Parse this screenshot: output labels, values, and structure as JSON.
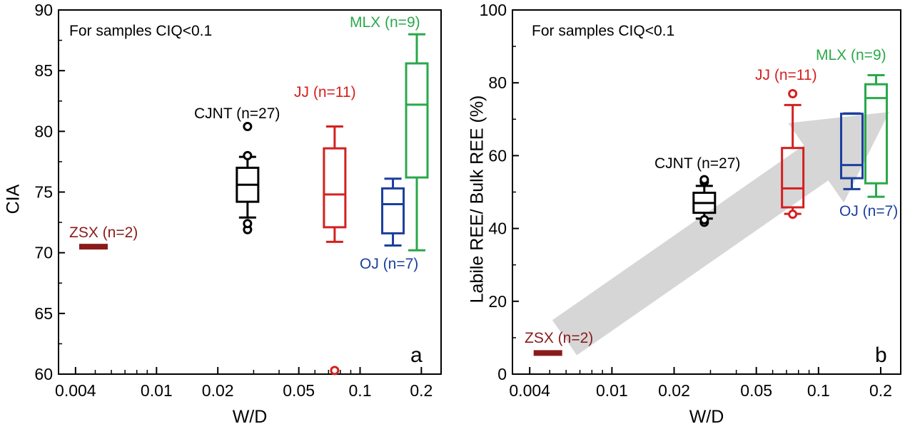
{
  "chart_data": [
    {
      "type": "box",
      "panel": "a",
      "note": "For samples CIQ<0.1",
      "xlabel": "W/D",
      "ylabel": "CIA",
      "x_scale": "log",
      "xlim": [
        0.0033,
        0.25
      ],
      "xticks": [
        0.004,
        0.01,
        0.02,
        0.05,
        0.1,
        0.2
      ],
      "xtick_labels": [
        "0.004",
        "0.01",
        "0.02",
        "0.05",
        "0.1",
        "0.2"
      ],
      "ylim": [
        60,
        90
      ],
      "yticks": [
        60,
        65,
        70,
        75,
        80,
        85,
        90
      ],
      "series": [
        {
          "name": "ZSX (n=2)",
          "color": "#8b1a1a",
          "x": 0.0049,
          "range_bar": [
            70.5,
            70.5
          ]
        },
        {
          "name": "CJNT (n=27)",
          "color": "#000000",
          "x": 0.028,
          "whisker_low": 72.9,
          "q1": 74.2,
          "median": 75.6,
          "q3": 77.0,
          "whisker_high": 77.9,
          "outliers": [
            71.9,
            72.4,
            78.0,
            80.4
          ]
        },
        {
          "name": "JJ (n=11)",
          "color": "#d42020",
          "x": 0.075,
          "whisker_low": 70.9,
          "q1": 72.1,
          "median": 74.8,
          "q3": 78.6,
          "whisker_high": 80.4,
          "outliers": [
            60.3
          ]
        },
        {
          "name": "OJ (n=7)",
          "color": "#1c3f9e",
          "x": 0.145,
          "whisker_low": 70.6,
          "q1": 71.6,
          "median": 74.0,
          "q3": 75.3,
          "whisker_high": 76.1,
          "outliers": []
        },
        {
          "name": "MLX (n=9)",
          "color": "#2aa84a",
          "x": 0.19,
          "whisker_low": 70.2,
          "q1": 76.2,
          "median": 82.2,
          "q3": 85.6,
          "whisker_high": 88.0,
          "outliers": []
        }
      ],
      "annotation": "a"
    },
    {
      "type": "box",
      "panel": "b",
      "note": "For samples CIQ<0.1",
      "xlabel": "W/D",
      "ylabel": "Labile REE/ Bulk REE (%)",
      "x_scale": "log",
      "xlim": [
        0.0033,
        0.25
      ],
      "xticks": [
        0.004,
        0.01,
        0.02,
        0.05,
        0.1,
        0.2
      ],
      "xtick_labels": [
        "0.004",
        "0.01",
        "0.02",
        "0.05",
        "0.1",
        "0.2"
      ],
      "ylim": [
        0,
        100
      ],
      "yticks": [
        0,
        20,
        40,
        60,
        80,
        100
      ],
      "series": [
        {
          "name": "ZSX (n=2)",
          "color": "#8b1a1a",
          "x": 0.0049,
          "range_bar": [
            5.8,
            5.8
          ]
        },
        {
          "name": "CJNT (n=27)",
          "color": "#000000",
          "x": 0.028,
          "whisker_low": 42.7,
          "q1": 44.3,
          "median": 47.0,
          "q3": 49.8,
          "whisker_high": 51.7,
          "outliers": [
            41.7,
            42.4,
            52.8,
            53.4
          ]
        },
        {
          "name": "JJ (n=11)",
          "color": "#d42020",
          "x": 0.075,
          "whisker_low": 44.0,
          "q1": 45.8,
          "median": 51.0,
          "q3": 62.1,
          "whisker_high": 73.9,
          "outliers": [
            43.9,
            77.0
          ]
        },
        {
          "name": "OJ (n=7)",
          "color": "#1c3f9e",
          "x": 0.145,
          "whisker_low": 50.8,
          "q1": 53.8,
          "median": 57.4,
          "q3": 71.5,
          "whisker_high": 71.6,
          "outliers": []
        },
        {
          "name": "MLX (n=9)",
          "color": "#2aa84a",
          "x": 0.19,
          "whisker_low": 48.7,
          "q1": 52.4,
          "median": 75.8,
          "q3": 79.6,
          "whisker_high": 82.1,
          "outliers": []
        }
      ],
      "trend_arrow": {
        "from": [
          0.0059,
          10
        ],
        "to": [
          0.22,
          72
        ],
        "color": "#c8c8c8"
      },
      "annotation": "b"
    }
  ]
}
